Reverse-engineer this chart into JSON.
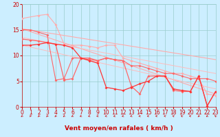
{
  "background_color": "#cceeff",
  "grid_color": "#99cccc",
  "line_color_dark": "#cc0000",
  "xlabel": "Vent moyen/en rafales ( km/h )",
  "xlim": [
    0,
    23
  ],
  "ylim": [
    0,
    20
  ],
  "yticks": [
    0,
    5,
    10,
    15,
    20
  ],
  "xticks": [
    0,
    1,
    2,
    3,
    4,
    5,
    6,
    7,
    8,
    9,
    10,
    11,
    12,
    13,
    14,
    15,
    16,
    17,
    18,
    19,
    20,
    21,
    22,
    23
  ],
  "tick_fontsize": 5.5,
  "axis_fontsize": 6.5,
  "line1_color": "#ffaaaa",
  "line2_color": "#ffaaaa",
  "line3_color": "#ffaaaa",
  "line4_color": "#ff6666",
  "line5_color": "#ff6666",
  "line6_color": "#ff3333",
  "line7_color": "#cc0000",
  "line1_x": [
    0,
    23
  ],
  "line1_y": [
    15.2,
    9.2
  ],
  "line2_x": [
    0,
    23
  ],
  "line2_y": [
    15.2,
    2.5
  ],
  "line3_x": [
    0,
    2,
    3,
    4,
    5,
    6,
    7,
    8,
    9,
    10,
    11,
    12,
    13,
    14,
    15,
    16,
    17,
    18,
    19,
    20,
    21,
    22,
    23
  ],
  "line3_y": [
    17.2,
    17.8,
    18.0,
    16.0,
    12.2,
    12.0,
    12.0,
    11.8,
    11.5,
    12.0,
    12.0,
    9.5,
    9.0,
    8.5,
    8.0,
    7.5,
    7.0,
    6.5,
    6.5,
    6.0,
    5.5,
    2.5,
    2.2
  ],
  "line4_x": [
    0,
    1,
    2,
    3,
    4,
    5,
    6,
    7,
    8,
    9,
    10,
    11,
    12,
    13,
    14,
    15,
    16,
    17,
    18,
    19,
    20,
    21,
    22,
    23
  ],
  "line4_y": [
    15.0,
    15.0,
    14.5,
    14.0,
    5.2,
    5.5,
    9.5,
    9.5,
    9.2,
    9.0,
    9.5,
    9.2,
    9.0,
    8.0,
    8.0,
    7.5,
    7.0,
    6.5,
    6.5,
    6.0,
    5.5,
    5.5,
    5.5,
    5.0
  ],
  "line5_x": [
    0,
    1,
    2,
    3,
    4,
    5,
    6,
    7,
    8,
    9,
    10,
    11,
    12,
    13,
    14,
    15,
    16,
    17,
    18,
    19,
    20,
    21,
    22,
    23
  ],
  "line5_y": [
    13.2,
    13.0,
    12.8,
    12.5,
    12.2,
    5.2,
    5.5,
    9.5,
    9.5,
    9.0,
    9.5,
    9.2,
    9.0,
    4.0,
    2.5,
    6.0,
    6.0,
    6.0,
    3.2,
    3.0,
    3.0,
    6.0,
    0.2,
    3.0
  ],
  "line6_x": [
    0,
    1,
    2,
    3,
    4,
    5,
    6,
    7,
    8,
    9,
    10,
    11,
    12,
    13,
    14,
    15,
    16,
    17,
    18,
    19,
    20,
    21,
    22,
    23
  ],
  "line6_y": [
    12.0,
    12.0,
    12.2,
    12.5,
    12.2,
    12.0,
    11.5,
    9.5,
    9.0,
    8.5,
    3.8,
    3.5,
    3.2,
    3.8,
    4.5,
    5.0,
    6.0,
    6.0,
    3.5,
    3.2,
    3.0,
    6.0,
    0.2,
    3.0
  ],
  "arrow_angles": [
    225,
    200,
    210,
    215,
    220,
    225,
    230,
    240,
    250,
    260,
    255,
    250,
    245,
    250,
    260,
    270,
    280,
    290,
    300,
    310,
    285,
    220,
    230,
    315
  ]
}
